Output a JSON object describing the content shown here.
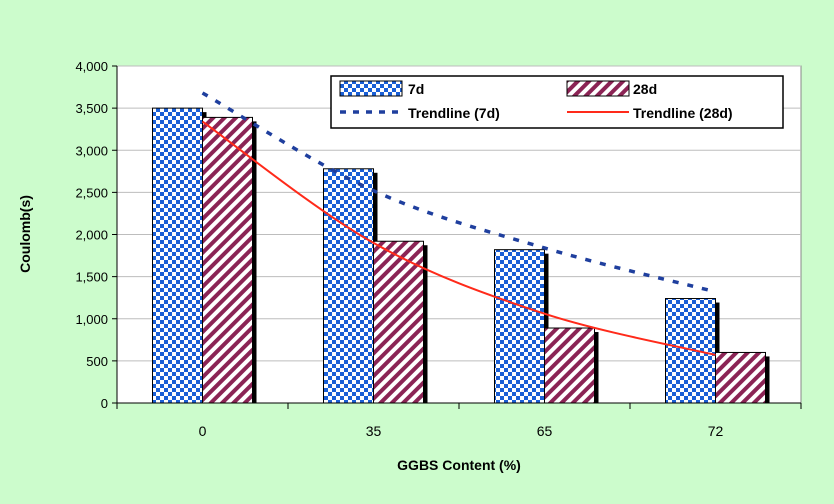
{
  "colors": {
    "page_background": "#ccfccc",
    "plot_background": "#ffffff",
    "bar_7d": "#1a5fd6",
    "bar_28d": "#8b2455",
    "trend_7d": "#1f3f9e",
    "trend_28d": "#ff2a1a"
  },
  "chart_data": {
    "type": "bar",
    "categories": [
      "0",
      "35",
      "65",
      "72"
    ],
    "series": [
      {
        "name": "7d",
        "values": [
          3500,
          2780,
          1820,
          1240
        ],
        "pattern": "checker",
        "color": "#1a5fd6"
      },
      {
        "name": "28d",
        "values": [
          3390,
          1920,
          890,
          600
        ],
        "pattern": "diagonal",
        "color": "#8b2455"
      }
    ],
    "trendlines": [
      {
        "name": "Trendline (7d)",
        "style": "dashed",
        "color": "#1f3f9e",
        "points": [
          [
            0,
            3680
          ],
          [
            35,
            2520
          ],
          [
            65,
            1840
          ],
          [
            72,
            1320
          ]
        ]
      },
      {
        "name": "Trendline (28d)",
        "style": "solid",
        "color": "#ff2a1a",
        "points": [
          [
            0,
            3340
          ],
          [
            35,
            1900
          ],
          [
            65,
            1060
          ],
          [
            72,
            570
          ]
        ]
      }
    ],
    "xlabel": "GGBS Content (%)",
    "ylabel": "Coulomb(s)",
    "yticks": [
      "0",
      "500",
      "1,000",
      "1,500",
      "2,000",
      "2,500",
      "3,000",
      "3,500",
      "4,000"
    ],
    "ylim": [
      0,
      4000
    ],
    "grid": true,
    "legend_position": "top-right"
  }
}
